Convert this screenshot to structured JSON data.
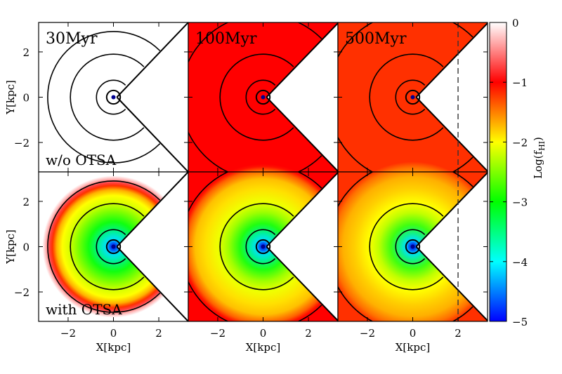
{
  "chart_data": {
    "type": "heatmap",
    "layout": {
      "rows": 2,
      "cols": 3
    },
    "xlabel": "X[kpc]",
    "ylabel": "Y[kpc]",
    "xlim": [
      -3.3,
      3.3
    ],
    "ylim": [
      -3.3,
      3.3
    ],
    "xticks": [
      {
        "value": -2,
        "label": "−2"
      },
      {
        "value": 0,
        "label": "0"
      },
      {
        "value": 2,
        "label": "2"
      }
    ],
    "yticks": [
      {
        "value": 2,
        "label": "2"
      },
      {
        "value": 0,
        "label": "0"
      },
      {
        "value": -2,
        "label": "−2"
      }
    ],
    "colorbar": {
      "label": "Log(f",
      "label_subscript": "HI",
      "label_suffix": ")",
      "range": [
        -5,
        0
      ],
      "ticks": [
        {
          "value": 0,
          "label": "0"
        },
        {
          "value": -1,
          "label": "−1"
        },
        {
          "value": -2,
          "label": "−2"
        },
        {
          "value": -3,
          "label": "−3"
        },
        {
          "value": -4,
          "label": "−4"
        },
        {
          "value": -5,
          "label": "−5"
        }
      ],
      "colors": [
        "#ffffff",
        "#ff0000",
        "#ffff00",
        "#00ff00",
        "#00ffff",
        "#0000ff"
      ]
    },
    "contour_radii_kpc": [
      0.3,
      0.75,
      1.9
    ],
    "outer_ring_radii_kpc": [
      2.9,
      3.65,
      3.75
    ],
    "wedge_opening_deg": 90,
    "wedge_apex_x_kpc": [
      0.15,
      0.15,
      0.15
    ],
    "panels": [
      {
        "row": 0,
        "col": 0,
        "time_label": "30Myr",
        "side_label": "w/o OTSA"
      },
      {
        "row": 0,
        "col": 1,
        "time_label": "100Myr",
        "side_label": ""
      },
      {
        "row": 0,
        "col": 2,
        "time_label": "500Myr",
        "side_label": "",
        "dashed_x": 2
      },
      {
        "row": 1,
        "col": 0,
        "time_label": "",
        "side_label": "with OTSA"
      },
      {
        "row": 1,
        "col": 1,
        "time_label": "",
        "side_label": ""
      },
      {
        "row": 1,
        "col": 2,
        "time_label": "",
        "side_label": "",
        "dashed_x": 2
      }
    ]
  }
}
